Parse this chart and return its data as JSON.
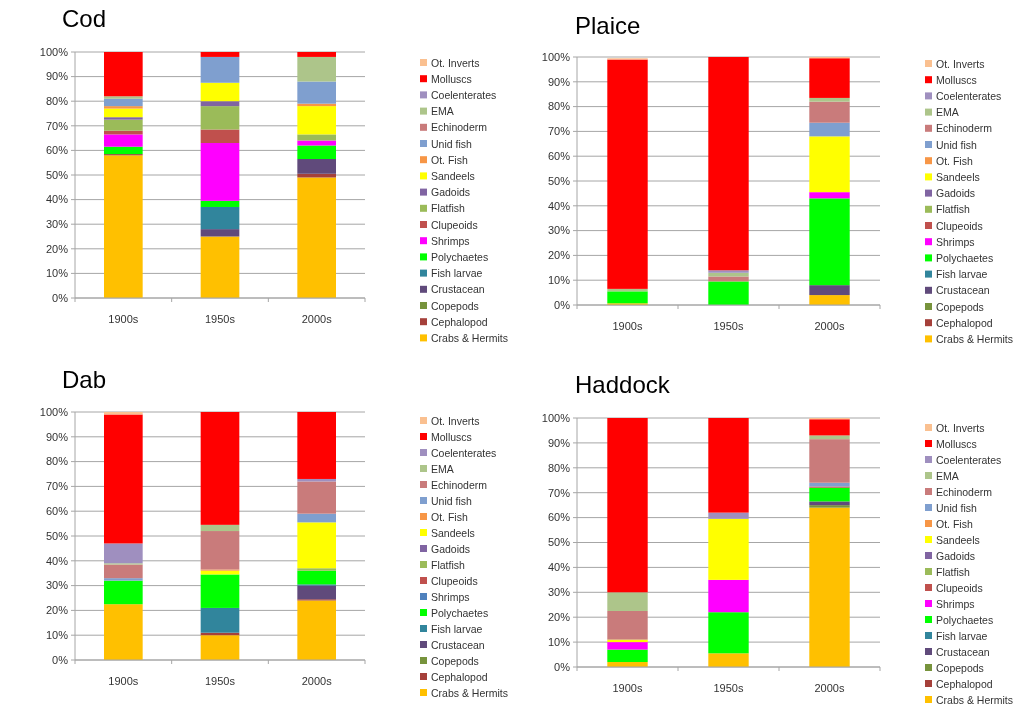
{
  "chart_data": [
    {
      "type": "bar",
      "title": "Cod",
      "stacked": true,
      "categories": [
        "1900s",
        "1950s",
        "2000s"
      ],
      "ylim": [
        0,
        100
      ],
      "yticks": [
        {
          "value": 0,
          "label": "0%"
        },
        {
          "value": 10,
          "label": "10%"
        },
        {
          "value": 20,
          "label": "20%"
        },
        {
          "value": 30,
          "label": "30%"
        },
        {
          "value": 40,
          "label": "40%"
        },
        {
          "value": 50,
          "label": "50%"
        },
        {
          "value": 60,
          "label": "60%"
        },
        {
          "value": 70,
          "label": "70%"
        },
        {
          "value": 80,
          "label": "80%"
        },
        {
          "value": 90,
          "label": "90%"
        },
        {
          "value": 100,
          "label": "100%"
        }
      ],
      "grid": "y",
      "legend": "right",
      "series": [
        {
          "name": "Crabs & Hermits",
          "color": "#ffc000",
          "values": [
            58,
            25,
            49
          ]
        },
        {
          "name": "Cephalopod",
          "color": "#a5403a",
          "values": [
            0.5,
            0,
            1.5
          ]
        },
        {
          "name": "Copepods",
          "color": "#77933c",
          "values": [
            0,
            0,
            0
          ]
        },
        {
          "name": "Crustacean",
          "color": "#604a7b",
          "values": [
            0,
            3,
            6
          ]
        },
        {
          "name": "Fish larvae",
          "color": "#31859c",
          "values": [
            0,
            9,
            0
          ]
        },
        {
          "name": "Polychaetes",
          "color": "#00ff00",
          "values": [
            3,
            2.5,
            5.5
          ]
        },
        {
          "name": "Shrimps",
          "color": "#ff00ff",
          "values": [
            5,
            23.5,
            2
          ]
        },
        {
          "name": "Clupeoids",
          "color": "#c0504d",
          "values": [
            1.5,
            5.5,
            0
          ]
        },
        {
          "name": "Flatfish",
          "color": "#9bbb59",
          "values": [
            4.5,
            9.5,
            2.5
          ]
        },
        {
          "name": "Gadoids",
          "color": "#8064a2",
          "values": [
            1,
            2,
            0
          ]
        },
        {
          "name": "Sandeels",
          "color": "#ffff00",
          "values": [
            3.5,
            7.5,
            11.5
          ]
        },
        {
          "name": "Ot. Fish",
          "color": "#f79646",
          "values": [
            1,
            0,
            1
          ]
        },
        {
          "name": "Unid fish",
          "color": "#7f9fcf",
          "values": [
            3,
            10.5,
            9
          ]
        },
        {
          "name": "Echinoderm",
          "color": "#c97b7b",
          "values": [
            0,
            0,
            0
          ]
        },
        {
          "name": "EMA",
          "color": "#adc58a",
          "values": [
            1,
            0,
            10
          ]
        },
        {
          "name": "Coelenterates",
          "color": "#9f8fbf",
          "values": [
            0,
            0,
            0
          ]
        },
        {
          "name": "Molluscs",
          "color": "#ff0000",
          "values": [
            18,
            2,
            2
          ]
        },
        {
          "name": "Ot. Inverts",
          "color": "#fac090",
          "values": [
            0,
            0,
            0
          ]
        }
      ]
    },
    {
      "type": "bar",
      "title": "Plaice",
      "stacked": true,
      "categories": [
        "1900s",
        "1950s",
        "2000s"
      ],
      "ylim": [
        0,
        100
      ],
      "yticks": [
        {
          "value": 0,
          "label": "0%"
        },
        {
          "value": 10,
          "label": "10%"
        },
        {
          "value": 20,
          "label": "20%"
        },
        {
          "value": 30,
          "label": "30%"
        },
        {
          "value": 40,
          "label": "40%"
        },
        {
          "value": 50,
          "label": "50%"
        },
        {
          "value": 60,
          "label": "60%"
        },
        {
          "value": 70,
          "label": "70%"
        },
        {
          "value": 80,
          "label": "80%"
        },
        {
          "value": 90,
          "label": "90%"
        },
        {
          "value": 100,
          "label": "100%"
        }
      ],
      "grid": "y",
      "legend": "right",
      "series": [
        {
          "name": "Crabs & Hermits",
          "color": "#ffc000",
          "values": [
            0.7,
            0,
            4
          ]
        },
        {
          "name": "Cephalopod",
          "color": "#a5403a",
          "values": [
            0,
            0,
            0
          ]
        },
        {
          "name": "Copepods",
          "color": "#77933c",
          "values": [
            0,
            0,
            0
          ]
        },
        {
          "name": "Crustacean",
          "color": "#604a7b",
          "values": [
            0,
            0,
            4
          ]
        },
        {
          "name": "Fish larvae",
          "color": "#31859c",
          "values": [
            0,
            0,
            0
          ]
        },
        {
          "name": "Polychaetes",
          "color": "#00ff00",
          "values": [
            4.8,
            9.5,
            35
          ]
        },
        {
          "name": "Shrimps",
          "color": "#ff00ff",
          "values": [
            0,
            0,
            2.5
          ]
        },
        {
          "name": "Clupeoids",
          "color": "#c0504d",
          "values": [
            0,
            0,
            0
          ]
        },
        {
          "name": "Flatfish",
          "color": "#9bbb59",
          "values": [
            0,
            0,
            0
          ]
        },
        {
          "name": "Gadoids",
          "color": "#8064a2",
          "values": [
            0,
            0,
            0
          ]
        },
        {
          "name": "Sandeels",
          "color": "#ffff00",
          "values": [
            0,
            0,
            22.5
          ]
        },
        {
          "name": "Ot. Fish",
          "color": "#f79646",
          "values": [
            0,
            0,
            0
          ]
        },
        {
          "name": "Unid fish",
          "color": "#7f9fcf",
          "values": [
            0,
            0,
            5.5
          ]
        },
        {
          "name": "Echinoderm",
          "color": "#c97b7b",
          "values": [
            0,
            2,
            8.5
          ]
        },
        {
          "name": "EMA",
          "color": "#adc58a",
          "values": [
            1,
            1.5,
            1.5
          ]
        },
        {
          "name": "Coelenterates",
          "color": "#9f8fbf",
          "values": [
            0,
            1,
            0
          ]
        },
        {
          "name": "Molluscs",
          "color": "#ff0000",
          "values": [
            92.5,
            86,
            16
          ]
        },
        {
          "name": "Ot. Inverts",
          "color": "#fac090",
          "values": [
            0.5,
            0,
            0.5
          ]
        }
      ]
    },
    {
      "type": "bar",
      "title": "Dab",
      "stacked": true,
      "categories": [
        "1900s",
        "1950s",
        "2000s"
      ],
      "ylim": [
        0,
        100
      ],
      "yticks": [
        {
          "value": 0,
          "label": "0%"
        },
        {
          "value": 10,
          "label": "10%"
        },
        {
          "value": 20,
          "label": "20%"
        },
        {
          "value": 30,
          "label": "30%"
        },
        {
          "value": 40,
          "label": "40%"
        },
        {
          "value": 50,
          "label": "50%"
        },
        {
          "value": 60,
          "label": "60%"
        },
        {
          "value": 70,
          "label": "70%"
        },
        {
          "value": 80,
          "label": "80%"
        },
        {
          "value": 90,
          "label": "90%"
        },
        {
          "value": 100,
          "label": "100%"
        }
      ],
      "grid": "y",
      "legend": "right",
      "series": [
        {
          "name": "Crabs & Hermits",
          "color": "#ffc000",
          "values": [
            22.5,
            10,
            24
          ]
        },
        {
          "name": "Cephalopod",
          "color": "#a5403a",
          "values": [
            0,
            1,
            0.5
          ]
        },
        {
          "name": "Copepods",
          "color": "#77933c",
          "values": [
            0,
            0,
            0
          ]
        },
        {
          "name": "Crustacean",
          "color": "#604a7b",
          "values": [
            0,
            0,
            5.5
          ]
        },
        {
          "name": "Fish larvae",
          "color": "#31859c",
          "values": [
            0,
            10,
            0.5
          ]
        },
        {
          "name": "Polychaetes",
          "color": "#00ff00",
          "values": [
            9.5,
            13.5,
            5.5
          ]
        },
        {
          "name": "Shrimps",
          "color": "#4f81bd",
          "values": [
            0,
            0,
            0
          ]
        },
        {
          "name": "Clupeoids",
          "color": "#c0504d",
          "values": [
            0,
            0,
            0
          ]
        },
        {
          "name": "Flatfish",
          "color": "#9bbb59",
          "values": [
            0,
            0,
            1
          ]
        },
        {
          "name": "Gadoids",
          "color": "#8064a2",
          "values": [
            0,
            0,
            0
          ]
        },
        {
          "name": "Sandeels",
          "color": "#ffff00",
          "values": [
            0,
            1.5,
            18.5
          ]
        },
        {
          "name": "Ot. Fish",
          "color": "#f79646",
          "values": [
            0,
            0.5,
            0
          ]
        },
        {
          "name": "Unid fish",
          "color": "#7f9fcf",
          "values": [
            1,
            0,
            3.5
          ]
        },
        {
          "name": "Echinoderm",
          "color": "#c97b7b",
          "values": [
            5.5,
            15.5,
            13
          ]
        },
        {
          "name": "EMA",
          "color": "#adc58a",
          "values": [
            0.5,
            2.5,
            0
          ]
        },
        {
          "name": "Coelenterates",
          "color": "#9f8fbf",
          "values": [
            8,
            0,
            1
          ]
        },
        {
          "name": "Molluscs",
          "color": "#ff0000",
          "values": [
            52,
            45.5,
            27
          ]
        },
        {
          "name": "Ot. Inverts",
          "color": "#fac090",
          "values": [
            1,
            0,
            0
          ]
        }
      ]
    },
    {
      "type": "bar",
      "title": "Haddock",
      "stacked": true,
      "categories": [
        "1900s",
        "1950s",
        "2000s"
      ],
      "ylim": [
        0,
        100
      ],
      "yticks": [
        {
          "value": 0,
          "label": "0%"
        },
        {
          "value": 10,
          "label": "10%"
        },
        {
          "value": 20,
          "label": "20%"
        },
        {
          "value": 30,
          "label": "30%"
        },
        {
          "value": 40,
          "label": "40%"
        },
        {
          "value": 50,
          "label": "50%"
        },
        {
          "value": 60,
          "label": "60%"
        },
        {
          "value": 70,
          "label": "70%"
        },
        {
          "value": 80,
          "label": "80%"
        },
        {
          "value": 90,
          "label": "90%"
        },
        {
          "value": 100,
          "label": "100%"
        }
      ],
      "grid": "y",
      "legend": "right",
      "series": [
        {
          "name": "Crabs & Hermits",
          "color": "#ffc000",
          "values": [
            2,
            5.5,
            64
          ]
        },
        {
          "name": "Cephalopod",
          "color": "#a5403a",
          "values": [
            0,
            0,
            0
          ]
        },
        {
          "name": "Copepods",
          "color": "#77933c",
          "values": [
            0,
            0,
            1
          ]
        },
        {
          "name": "Crustacean",
          "color": "#604a7b",
          "values": [
            0,
            0,
            1.5
          ]
        },
        {
          "name": "Fish larvae",
          "color": "#31859c",
          "values": [
            0,
            0,
            0
          ]
        },
        {
          "name": "Polychaetes",
          "color": "#00ff00",
          "values": [
            5,
            16.5,
            5.5
          ]
        },
        {
          "name": "Shrimps",
          "color": "#ff00ff",
          "values": [
            3,
            13,
            0
          ]
        },
        {
          "name": "Clupeoids",
          "color": "#c0504d",
          "values": [
            0,
            0,
            0.5
          ]
        },
        {
          "name": "Flatfish",
          "color": "#9bbb59",
          "values": [
            0,
            0,
            0
          ]
        },
        {
          "name": "Gadoids",
          "color": "#8064a2",
          "values": [
            0,
            0,
            0
          ]
        },
        {
          "name": "Sandeels",
          "color": "#ffff00",
          "values": [
            1,
            24.5,
            0
          ]
        },
        {
          "name": "Ot. Fish",
          "color": "#f79646",
          "values": [
            0,
            0,
            0
          ]
        },
        {
          "name": "Unid fish",
          "color": "#7f9fcf",
          "values": [
            0,
            0,
            1.5
          ]
        },
        {
          "name": "Echinoderm",
          "color": "#c97b7b",
          "values": [
            11.5,
            0,
            17.5
          ]
        },
        {
          "name": "EMA",
          "color": "#adc58a",
          "values": [
            7.5,
            0,
            1.5
          ]
        },
        {
          "name": "Coelenterates",
          "color": "#9f8fbf",
          "values": [
            0,
            2.5,
            0
          ]
        },
        {
          "name": "Molluscs",
          "color": "#ff0000",
          "values": [
            70,
            38,
            6.5
          ]
        },
        {
          "name": "Ot. Inverts",
          "color": "#fac090",
          "values": [
            0,
            0,
            0.5
          ]
        }
      ]
    }
  ]
}
